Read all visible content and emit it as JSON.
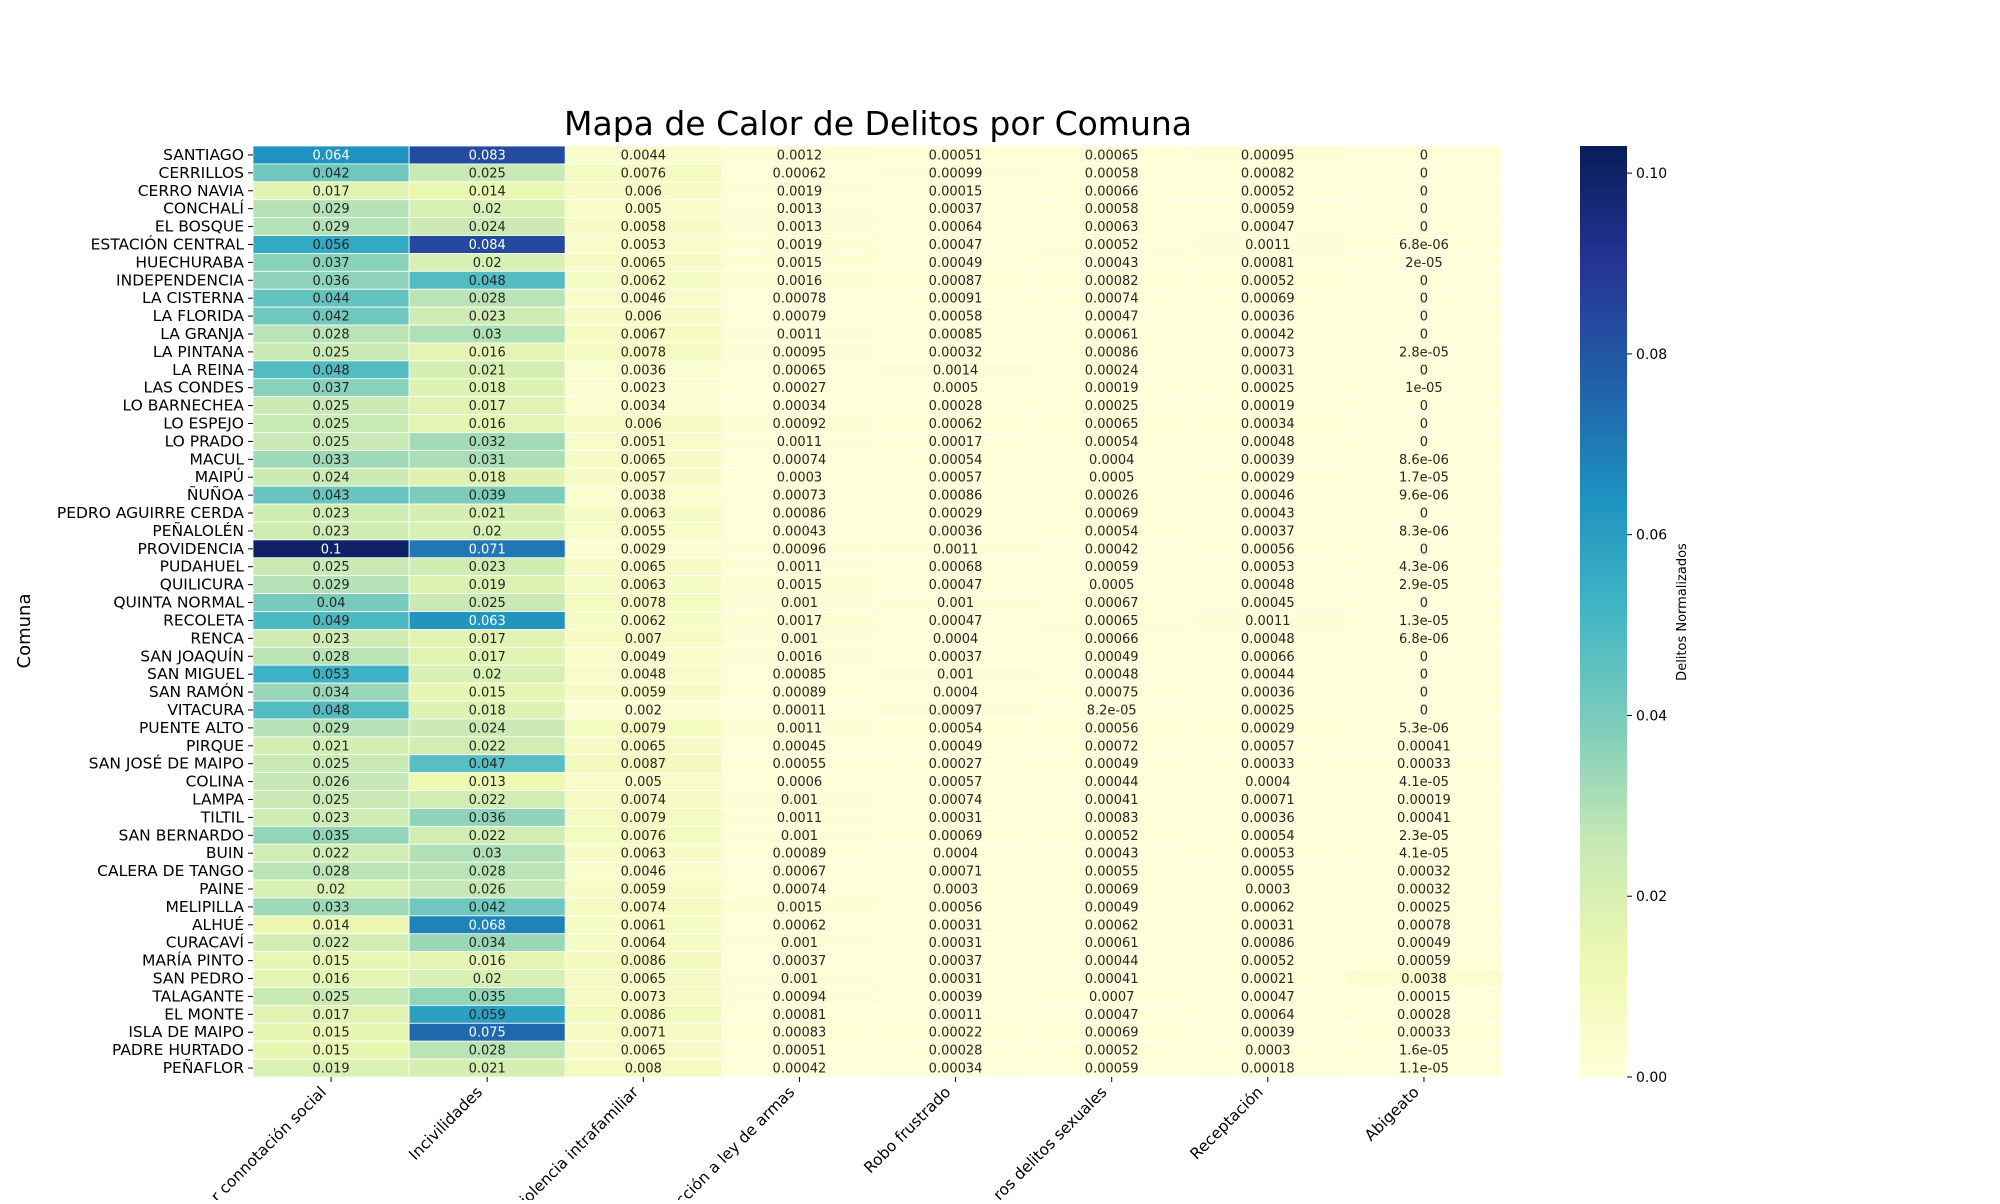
{
  "chart_data": {
    "type": "heatmap",
    "title": "Mapa de Calor de Delitos por Comuna",
    "ylabel": "Comuna",
    "colorbar_label": "Delitos Normalizados",
    "colorbar_ticks": [
      "0.00",
      "0.02",
      "0.04",
      "0.06",
      "0.08",
      "0.10"
    ],
    "vmin": 0,
    "vmax": 0.103,
    "colormap": "YlGnBu",
    "columns": [
      "Robos con violencia o intimidación: Otros robos con fuerza y Hurtos de mayor connotación social",
      "Incivilidades",
      "Violencia intrafamiliar",
      "Infracción a ley de armas",
      "Robo frustrado",
      "Otros delitos sexuales",
      "Receptación",
      "Abigeato"
    ],
    "column_tick_labels": [
      "r connotación social",
      "Incivilidades",
      "iolencia intrafamiliar",
      "cción a ley de armas",
      "Robo frustrado",
      "ros delitos sexuales",
      "Receptación",
      "Abigeato"
    ],
    "rows": [
      "SANTIAGO",
      "CERRILLOS",
      "CERRO NAVIA",
      "CONCHALÍ",
      "EL BOSQUE",
      "ESTACIÓN CENTRAL",
      "HUECHURABA",
      "INDEPENDENCIA",
      "LA CISTERNA",
      "LA FLORIDA",
      "LA GRANJA",
      "LA PINTANA",
      "LA REINA",
      "LAS CONDES",
      "LO BARNECHEA",
      "LO ESPEJO",
      "LO PRADO",
      "MACUL",
      "MAIPÚ",
      "ÑUÑOA",
      "PEDRO AGUIRRE CERDA",
      "PEÑALOLÉN",
      "PROVIDENCIA",
      "PUDAHUEL",
      "QUILICURA",
      "QUINTA NORMAL",
      "RECOLETA",
      "RENCA",
      "SAN JOAQUÍN",
      "SAN MIGUEL",
      "SAN RAMÓN",
      "VITACURA",
      "PUENTE ALTO",
      "PIRQUE",
      "SAN JOSÉ DE MAIPO",
      "COLINA",
      "LAMPA",
      "TILTIL",
      "SAN BERNARDO",
      "BUIN",
      "CALERA DE TANGO",
      "PAINE",
      "MELIPILLA",
      "ALHUÉ",
      "CURACAVÍ",
      "MARÍA PINTO",
      "SAN PEDRO",
      "TALAGANTE",
      "EL MONTE",
      "ISLA DE MAIPO",
      "PADRE HURTADO",
      "PEÑAFLOR"
    ],
    "values": [
      [
        0.064,
        0.083,
        0.0044,
        0.0012,
        0.00051,
        0.00065,
        0.00095,
        0
      ],
      [
        0.042,
        0.025,
        0.0076,
        0.00062,
        0.00099,
        0.00058,
        0.00082,
        0
      ],
      [
        0.017,
        0.014,
        0.006,
        0.0019,
        0.00015,
        0.00066,
        0.00052,
        0
      ],
      [
        0.029,
        0.02,
        0.005,
        0.0013,
        0.00037,
        0.00058,
        0.00059,
        0
      ],
      [
        0.029,
        0.024,
        0.0058,
        0.0013,
        0.00064,
        0.00063,
        0.00047,
        0
      ],
      [
        0.056,
        0.084,
        0.0053,
        0.0019,
        0.00047,
        0.00052,
        0.0011,
        6.8e-06
      ],
      [
        0.037,
        0.02,
        0.0065,
        0.0015,
        0.00049,
        0.00043,
        0.00081,
        2e-05
      ],
      [
        0.036,
        0.048,
        0.0062,
        0.0016,
        0.00087,
        0.00082,
        0.00052,
        0
      ],
      [
        0.044,
        0.028,
        0.0046,
        0.00078,
        0.00091,
        0.00074,
        0.00069,
        0
      ],
      [
        0.042,
        0.023,
        0.006,
        0.00079,
        0.00058,
        0.00047,
        0.00036,
        0
      ],
      [
        0.028,
        0.03,
        0.0067,
        0.0011,
        0.00085,
        0.00061,
        0.00042,
        0
      ],
      [
        0.025,
        0.016,
        0.0078,
        0.00095,
        0.00032,
        0.00086,
        0.00073,
        2.8e-05
      ],
      [
        0.048,
        0.021,
        0.0036,
        0.00065,
        0.0014,
        0.00024,
        0.00031,
        0
      ],
      [
        0.037,
        0.018,
        0.0023,
        0.00027,
        0.0005,
        0.00019,
        0.00025,
        1e-05
      ],
      [
        0.025,
        0.017,
        0.0034,
        0.00034,
        0.00028,
        0.00025,
        0.00019,
        0
      ],
      [
        0.025,
        0.016,
        0.006,
        0.00092,
        0.00062,
        0.00065,
        0.00034,
        0
      ],
      [
        0.025,
        0.032,
        0.0051,
        0.0011,
        0.00017,
        0.00054,
        0.00048,
        0
      ],
      [
        0.033,
        0.031,
        0.0065,
        0.00074,
        0.00054,
        0.0004,
        0.00039,
        8.6e-06
      ],
      [
        0.024,
        0.018,
        0.0057,
        0.0003,
        0.00057,
        0.0005,
        0.00029,
        1.7e-05
      ],
      [
        0.043,
        0.039,
        0.0038,
        0.00073,
        0.00086,
        0.00026,
        0.00046,
        9.6e-06
      ],
      [
        0.023,
        0.021,
        0.0063,
        0.00086,
        0.00029,
        0.00069,
        0.00043,
        0
      ],
      [
        0.023,
        0.02,
        0.0055,
        0.00043,
        0.00036,
        0.00054,
        0.00037,
        8.3e-06
      ],
      [
        0.1,
        0.071,
        0.0029,
        0.00096,
        0.0011,
        0.00042,
        0.00056,
        0
      ],
      [
        0.025,
        0.023,
        0.0065,
        0.0011,
        0.00068,
        0.00059,
        0.00053,
        4.3e-06
      ],
      [
        0.029,
        0.019,
        0.0063,
        0.0015,
        0.00047,
        0.0005,
        0.00048,
        2.9e-05
      ],
      [
        0.04,
        0.025,
        0.0078,
        0.001,
        0.001,
        0.00067,
        0.00045,
        0
      ],
      [
        0.049,
        0.063,
        0.0062,
        0.0017,
        0.00047,
        0.00065,
        0.0011,
        1.3e-05
      ],
      [
        0.023,
        0.017,
        0.007,
        0.001,
        0.0004,
        0.00066,
        0.00048,
        6.8e-06
      ],
      [
        0.028,
        0.017,
        0.0049,
        0.0016,
        0.00037,
        0.00049,
        0.00066,
        0
      ],
      [
        0.053,
        0.02,
        0.0048,
        0.00085,
        0.001,
        0.00048,
        0.00044,
        0
      ],
      [
        0.034,
        0.015,
        0.0059,
        0.00089,
        0.0004,
        0.00075,
        0.00036,
        0
      ],
      [
        0.048,
        0.018,
        0.002,
        0.00011,
        0.00097,
        8.2e-05,
        0.00025,
        0
      ],
      [
        0.029,
        0.024,
        0.0079,
        0.0011,
        0.00054,
        0.00056,
        0.00029,
        5.3e-06
      ],
      [
        0.021,
        0.022,
        0.0065,
        0.00045,
        0.00049,
        0.00072,
        0.00057,
        0.00041
      ],
      [
        0.025,
        0.047,
        0.0087,
        0.00055,
        0.00027,
        0.00049,
        0.00033,
        0.00033
      ],
      [
        0.026,
        0.013,
        0.005,
        0.0006,
        0.00057,
        0.00044,
        0.0004,
        4.1e-05
      ],
      [
        0.025,
        0.022,
        0.0074,
        0.001,
        0.00074,
        0.00041,
        0.00071,
        0.00019
      ],
      [
        0.023,
        0.036,
        0.0079,
        0.0011,
        0.00031,
        0.00083,
        0.00036,
        0.00041
      ],
      [
        0.035,
        0.022,
        0.0076,
        0.001,
        0.00069,
        0.00052,
        0.00054,
        2.3e-05
      ],
      [
        0.022,
        0.03,
        0.0063,
        0.00089,
        0.0004,
        0.00043,
        0.00053,
        4.1e-05
      ],
      [
        0.028,
        0.028,
        0.0046,
        0.00067,
        0.00071,
        0.00055,
        0.00055,
        0.00032
      ],
      [
        0.02,
        0.026,
        0.0059,
        0.00074,
        0.0003,
        0.00069,
        0.0003,
        0.00032
      ],
      [
        0.033,
        0.042,
        0.0074,
        0.0015,
        0.00056,
        0.00049,
        0.00062,
        0.00025
      ],
      [
        0.014,
        0.068,
        0.0061,
        0.00062,
        0.00031,
        0.00062,
        0.00031,
        0.00078
      ],
      [
        0.022,
        0.034,
        0.0064,
        0.001,
        0.00031,
        0.00061,
        0.00086,
        0.00049
      ],
      [
        0.015,
        0.016,
        0.0086,
        0.00037,
        0.00037,
        0.00044,
        0.00052,
        0.00059
      ],
      [
        0.016,
        0.02,
        0.0065,
        0.001,
        0.00031,
        0.00041,
        0.00021,
        0.0038
      ],
      [
        0.025,
        0.035,
        0.0073,
        0.00094,
        0.00039,
        0.0007,
        0.00047,
        0.00015
      ],
      [
        0.017,
        0.059,
        0.0086,
        0.00081,
        0.00011,
        0.00047,
        0.00064,
        0.00028
      ],
      [
        0.015,
        0.075,
        0.0071,
        0.00083,
        0.00022,
        0.00069,
        0.00039,
        0.00033
      ],
      [
        0.015,
        0.028,
        0.0065,
        0.00051,
        0.00028,
        0.00052,
        0.0003,
        1.6e-05
      ],
      [
        0.019,
        0.021,
        0.008,
        0.00042,
        0.00034,
        0.00059,
        0.00018,
        1.1e-05
      ]
    ],
    "labels": [
      [
        "0.064",
        "0.083",
        "0.0044",
        "0.0012",
        "0.00051",
        "0.00065",
        "0.00095",
        "0"
      ],
      [
        "0.042",
        "0.025",
        "0.0076",
        "0.00062",
        "0.00099",
        "0.00058",
        "0.00082",
        "0"
      ],
      [
        "0.017",
        "0.014",
        "0.006",
        "0.0019",
        "0.00015",
        "0.00066",
        "0.00052",
        "0"
      ],
      [
        "0.029",
        "0.02",
        "0.005",
        "0.0013",
        "0.00037",
        "0.00058",
        "0.00059",
        "0"
      ],
      [
        "0.029",
        "0.024",
        "0.0058",
        "0.0013",
        "0.00064",
        "0.00063",
        "0.00047",
        "0"
      ],
      [
        "0.056",
        "0.084",
        "0.0053",
        "0.0019",
        "0.00047",
        "0.00052",
        "0.0011",
        "6.8e-06"
      ],
      [
        "0.037",
        "0.02",
        "0.0065",
        "0.0015",
        "0.00049",
        "0.00043",
        "0.00081",
        "2e-05"
      ],
      [
        "0.036",
        "0.048",
        "0.0062",
        "0.0016",
        "0.00087",
        "0.00082",
        "0.00052",
        "0"
      ],
      [
        "0.044",
        "0.028",
        "0.0046",
        "0.00078",
        "0.00091",
        "0.00074",
        "0.00069",
        "0"
      ],
      [
        "0.042",
        "0.023",
        "0.006",
        "0.00079",
        "0.00058",
        "0.00047",
        "0.00036",
        "0"
      ],
      [
        "0.028",
        "0.03",
        "0.0067",
        "0.0011",
        "0.00085",
        "0.00061",
        "0.00042",
        "0"
      ],
      [
        "0.025",
        "0.016",
        "0.0078",
        "0.00095",
        "0.00032",
        "0.00086",
        "0.00073",
        "2.8e-05"
      ],
      [
        "0.048",
        "0.021",
        "0.0036",
        "0.00065",
        "0.0014",
        "0.00024",
        "0.00031",
        "0"
      ],
      [
        "0.037",
        "0.018",
        "0.0023",
        "0.00027",
        "0.0005",
        "0.00019",
        "0.00025",
        "1e-05"
      ],
      [
        "0.025",
        "0.017",
        "0.0034",
        "0.00034",
        "0.00028",
        "0.00025",
        "0.00019",
        "0"
      ],
      [
        "0.025",
        "0.016",
        "0.006",
        "0.00092",
        "0.00062",
        "0.00065",
        "0.00034",
        "0"
      ],
      [
        "0.025",
        "0.032",
        "0.0051",
        "0.0011",
        "0.00017",
        "0.00054",
        "0.00048",
        "0"
      ],
      [
        "0.033",
        "0.031",
        "0.0065",
        "0.00074",
        "0.00054",
        "0.0004",
        "0.00039",
        "8.6e-06"
      ],
      [
        "0.024",
        "0.018",
        "0.0057",
        "0.0003",
        "0.00057",
        "0.0005",
        "0.00029",
        "1.7e-05"
      ],
      [
        "0.043",
        "0.039",
        "0.0038",
        "0.00073",
        "0.00086",
        "0.00026",
        "0.00046",
        "9.6e-06"
      ],
      [
        "0.023",
        "0.021",
        "0.0063",
        "0.00086",
        "0.00029",
        "0.00069",
        "0.00043",
        "0"
      ],
      [
        "0.023",
        "0.02",
        "0.0055",
        "0.00043",
        "0.00036",
        "0.00054",
        "0.00037",
        "8.3e-06"
      ],
      [
        "0.1",
        "0.071",
        "0.0029",
        "0.00096",
        "0.0011",
        "0.00042",
        "0.00056",
        "0"
      ],
      [
        "0.025",
        "0.023",
        "0.0065",
        "0.0011",
        "0.00068",
        "0.00059",
        "0.00053",
        "4.3e-06"
      ],
      [
        "0.029",
        "0.019",
        "0.0063",
        "0.0015",
        "0.00047",
        "0.0005",
        "0.00048",
        "2.9e-05"
      ],
      [
        "0.04",
        "0.025",
        "0.0078",
        "0.001",
        "0.001",
        "0.00067",
        "0.00045",
        "0"
      ],
      [
        "0.049",
        "0.063",
        "0.0062",
        "0.0017",
        "0.00047",
        "0.00065",
        "0.0011",
        "1.3e-05"
      ],
      [
        "0.023",
        "0.017",
        "0.007",
        "0.001",
        "0.0004",
        "0.00066",
        "0.00048",
        "6.8e-06"
      ],
      [
        "0.028",
        "0.017",
        "0.0049",
        "0.0016",
        "0.00037",
        "0.00049",
        "0.00066",
        "0"
      ],
      [
        "0.053",
        "0.02",
        "0.0048",
        "0.00085",
        "0.001",
        "0.00048",
        "0.00044",
        "0"
      ],
      [
        "0.034",
        "0.015",
        "0.0059",
        "0.00089",
        "0.0004",
        "0.00075",
        "0.00036",
        "0"
      ],
      [
        "0.048",
        "0.018",
        "0.002",
        "0.00011",
        "0.00097",
        "8.2e-05",
        "0.00025",
        "0"
      ],
      [
        "0.029",
        "0.024",
        "0.0079",
        "0.0011",
        "0.00054",
        "0.00056",
        "0.00029",
        "5.3e-06"
      ],
      [
        "0.021",
        "0.022",
        "0.0065",
        "0.00045",
        "0.00049",
        "0.00072",
        "0.00057",
        "0.00041"
      ],
      [
        "0.025",
        "0.047",
        "0.0087",
        "0.00055",
        "0.00027",
        "0.00049",
        "0.00033",
        "0.00033"
      ],
      [
        "0.026",
        "0.013",
        "0.005",
        "0.0006",
        "0.00057",
        "0.00044",
        "0.0004",
        "4.1e-05"
      ],
      [
        "0.025",
        "0.022",
        "0.0074",
        "0.001",
        "0.00074",
        "0.00041",
        "0.00071",
        "0.00019"
      ],
      [
        "0.023",
        "0.036",
        "0.0079",
        "0.0011",
        "0.00031",
        "0.00083",
        "0.00036",
        "0.00041"
      ],
      [
        "0.035",
        "0.022",
        "0.0076",
        "0.001",
        "0.00069",
        "0.00052",
        "0.00054",
        "2.3e-05"
      ],
      [
        "0.022",
        "0.03",
        "0.0063",
        "0.00089",
        "0.0004",
        "0.00043",
        "0.00053",
        "4.1e-05"
      ],
      [
        "0.028",
        "0.028",
        "0.0046",
        "0.00067",
        "0.00071",
        "0.00055",
        "0.00055",
        "0.00032"
      ],
      [
        "0.02",
        "0.026",
        "0.0059",
        "0.00074",
        "0.0003",
        "0.00069",
        "0.0003",
        "0.00032"
      ],
      [
        "0.033",
        "0.042",
        "0.0074",
        "0.0015",
        "0.00056",
        "0.00049",
        "0.00062",
        "0.00025"
      ],
      [
        "0.014",
        "0.068",
        "0.0061",
        "0.00062",
        "0.00031",
        "0.00062",
        "0.00031",
        "0.00078"
      ],
      [
        "0.022",
        "0.034",
        "0.0064",
        "0.001",
        "0.00031",
        "0.00061",
        "0.00086",
        "0.00049"
      ],
      [
        "0.015",
        "0.016",
        "0.0086",
        "0.00037",
        "0.00037",
        "0.00044",
        "0.00052",
        "0.00059"
      ],
      [
        "0.016",
        "0.02",
        "0.0065",
        "0.001",
        "0.00031",
        "0.00041",
        "0.00021",
        "0.0038"
      ],
      [
        "0.025",
        "0.035",
        "0.0073",
        "0.00094",
        "0.00039",
        "0.0007",
        "0.00047",
        "0.00015"
      ],
      [
        "0.017",
        "0.059",
        "0.0086",
        "0.00081",
        "0.00011",
        "0.00047",
        "0.00064",
        "0.00028"
      ],
      [
        "0.015",
        "0.075",
        "0.0071",
        "0.00083",
        "0.00022",
        "0.00069",
        "0.00039",
        "0.00033"
      ],
      [
        "0.015",
        "0.028",
        "0.0065",
        "0.00051",
        "0.00028",
        "0.00052",
        "0.0003",
        "1.6e-05"
      ],
      [
        "0.019",
        "0.021",
        "0.008",
        "0.00042",
        "0.00034",
        "0.00059",
        "0.00018",
        "1.1e-05"
      ]
    ]
  }
}
